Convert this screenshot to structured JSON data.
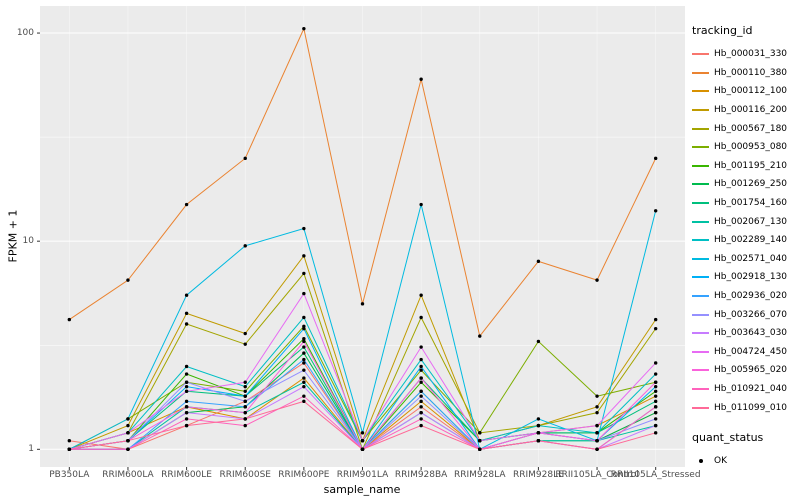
{
  "figure": {
    "y_axis_title": "FPKM + 1",
    "x_axis_title": "sample_name",
    "color_legend_title": "tracking_id",
    "shape_legend_title": "quant_status",
    "shape_legend_items": [
      {
        "label": "OK"
      }
    ]
  },
  "chart_data": {
    "type": "line",
    "title": "",
    "xlabel": "sample_name",
    "ylabel": "FPKM + 1",
    "y_scale": "log10",
    "y_ticks": [
      1,
      10,
      100
    ],
    "ylim": [
      1,
      110
    ],
    "grid": true,
    "legend_position": "right",
    "panel_bg": "#EBEBEB",
    "grid_color": "#FFFFFF",
    "axis_text_color": "#4d4d4d",
    "tick_mark_color": "#333333",
    "point_color": "#000000",
    "quant_status_label": "OK",
    "categories": [
      "PB350LA",
      "RRIM600LA",
      "RRIM600LE",
      "RRIM600SE",
      "RRIM600PE",
      "RRIM901LA",
      "RRIM928BA",
      "RRIM928LA",
      "RRIM928LE",
      "RRII105LA_Control",
      "RRII105LA_Stressed"
    ],
    "series": [
      {
        "name": "Hb_000031_330",
        "color": "#F8766D",
        "values": [
          1.1,
          1.0,
          1.3,
          1.7,
          2.6,
          1.0,
          1.6,
          1.0,
          1.2,
          1.1,
          1.5
        ]
      },
      {
        "name": "Hb_000110_380",
        "color": "#EA8331",
        "values": [
          4.2,
          6.5,
          15,
          25,
          105,
          5,
          60,
          3.5,
          8,
          6.5,
          25
        ]
      },
      {
        "name": "Hb_000112_100",
        "color": "#D89000",
        "values": [
          1.0,
          1.2,
          1.6,
          1.4,
          2.2,
          1.0,
          1.7,
          1.0,
          1.2,
          1.3,
          1.8
        ]
      },
      {
        "name": "Hb_000116_200",
        "color": "#C09B00",
        "values": [
          1.0,
          1.3,
          4.5,
          3.6,
          8.5,
          1.1,
          5.5,
          1.1,
          1.3,
          1.6,
          4.2
        ]
      },
      {
        "name": "Hb_000567_180",
        "color": "#A3A500",
        "values": [
          1.0,
          1.2,
          4.0,
          3.2,
          7.0,
          1.0,
          4.3,
          1.2,
          1.3,
          1.5,
          3.8
        ]
      },
      {
        "name": "Hb_000953_080",
        "color": "#7CAE00",
        "values": [
          1.0,
          1.4,
          2.1,
          1.9,
          3.9,
          1.1,
          2.4,
          1.2,
          3.3,
          1.8,
          2.1
        ]
      },
      {
        "name": "Hb_001195_210",
        "color": "#39B600",
        "values": [
          1.0,
          1.1,
          2.3,
          1.8,
          3.4,
          1.0,
          2.1,
          1.1,
          1.2,
          1.2,
          1.9
        ]
      },
      {
        "name": "Hb_001269_250",
        "color": "#00BB4E",
        "values": [
          1.0,
          1.0,
          1.5,
          1.6,
          2.9,
          1.0,
          1.9,
          1.0,
          1.1,
          1.1,
          1.5
        ]
      },
      {
        "name": "Hb_001754_160",
        "color": "#00BF7D",
        "values": [
          1.0,
          1.1,
          1.9,
          1.8,
          3.1,
          1.0,
          2.2,
          1.1,
          1.2,
          1.2,
          1.7
        ]
      },
      {
        "name": "Hb_002067_130",
        "color": "#00C1A3",
        "values": [
          1.0,
          1.0,
          1.6,
          1.5,
          2.1,
          1.0,
          1.5,
          1.0,
          1.1,
          1.1,
          1.3
        ]
      },
      {
        "name": "Hb_002289_140",
        "color": "#00BFC4",
        "values": [
          1.0,
          1.2,
          2.5,
          2.0,
          4.3,
          1.1,
          2.7,
          1.1,
          1.3,
          1.2,
          2.3
        ]
      },
      {
        "name": "Hb_002571_040",
        "color": "#00BAE0",
        "values": [
          1.0,
          1.4,
          5.5,
          9.5,
          11.5,
          1.2,
          15,
          1.0,
          1.4,
          1.1,
          14
        ]
      },
      {
        "name": "Hb_002918_130",
        "color": "#00B0F6",
        "values": [
          1.0,
          1.1,
          2.0,
          1.8,
          3.8,
          1.0,
          2.5,
          1.0,
          1.2,
          1.1,
          2.0
        ]
      },
      {
        "name": "Hb_002936_020",
        "color": "#35A2FF",
        "values": [
          1.0,
          1.0,
          1.7,
          1.6,
          2.7,
          1.0,
          1.9,
          1.0,
          1.1,
          1.0,
          1.6
        ]
      },
      {
        "name": "Hb_003266_070",
        "color": "#9590FF",
        "values": [
          1.0,
          1.1,
          2.1,
          1.7,
          2.4,
          1.0,
          1.8,
          1.0,
          1.2,
          1.1,
          1.4
        ]
      },
      {
        "name": "Hb_003643_030",
        "color": "#C77CFF",
        "values": [
          1.0,
          1.0,
          1.5,
          1.4,
          2.0,
          1.0,
          1.5,
          1.0,
          1.1,
          1.0,
          1.3
        ]
      },
      {
        "name": "Hb_004724_450",
        "color": "#E76BF3",
        "values": [
          1.0,
          1.2,
          1.9,
          2.1,
          5.6,
          1.1,
          3.1,
          1.1,
          1.2,
          1.3,
          2.6
        ]
      },
      {
        "name": "Hb_005965_020",
        "color": "#FA62DB",
        "values": [
          1.0,
          1.1,
          1.6,
          1.5,
          3.3,
          1.0,
          2.2,
          1.0,
          1.2,
          1.1,
          2.1
        ]
      },
      {
        "name": "Hb_010921_040",
        "color": "#FF62BC",
        "values": [
          1.0,
          1.0,
          1.4,
          1.3,
          1.8,
          1.0,
          1.4,
          1.0,
          1.1,
          1.0,
          1.6
        ]
      },
      {
        "name": "Hb_011099_010",
        "color": "#FF6A98",
        "values": [
          1.0,
          1.1,
          1.3,
          1.4,
          1.7,
          1.0,
          1.3,
          1.0,
          1.1,
          1.0,
          1.2
        ]
      }
    ]
  }
}
